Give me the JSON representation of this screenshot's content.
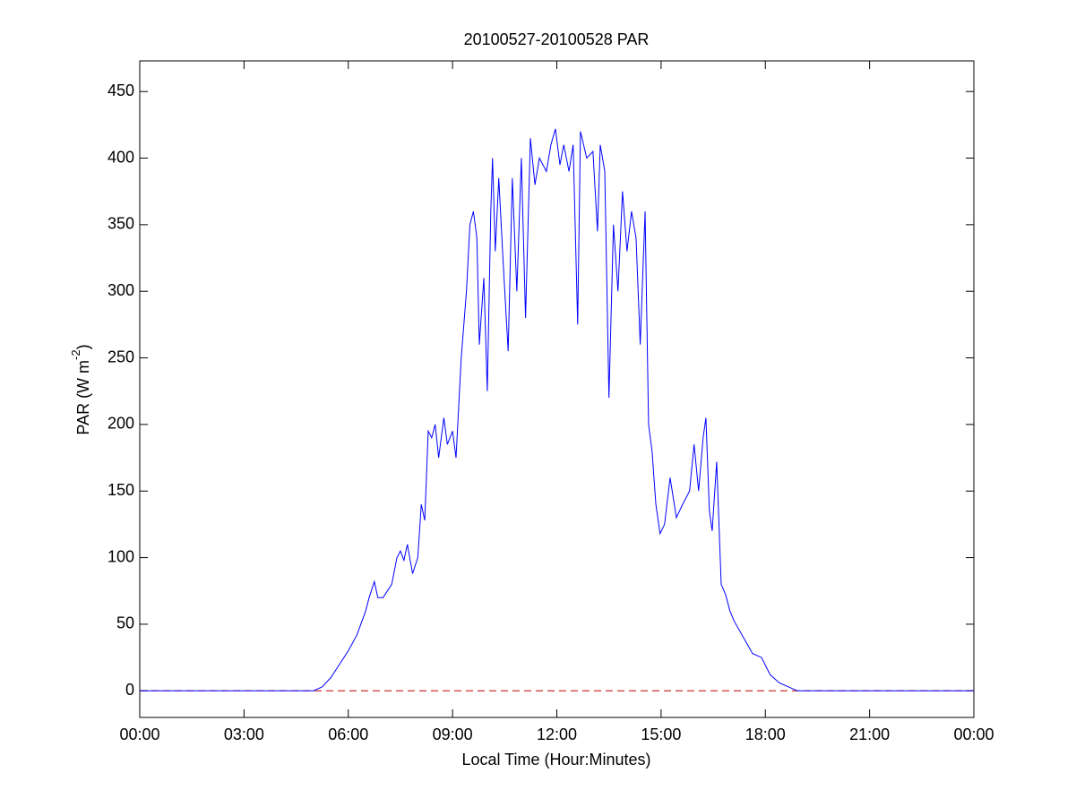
{
  "chart_data": {
    "type": "line",
    "title": "20100527-20100528 PAR",
    "xlabel": "Local Time (Hour:Minutes)",
    "ylabel": [
      "PAR (W m",
      "-2",
      ")"
    ],
    "x": [
      0,
      4.8,
      5.0,
      5.25,
      5.5,
      5.75,
      6.0,
      6.25,
      6.5,
      6.6,
      6.75,
      6.85,
      7.0,
      7.25,
      7.4,
      7.5,
      7.6,
      7.7,
      7.85,
      8.0,
      8.1,
      8.2,
      8.3,
      8.4,
      8.5,
      8.6,
      8.75,
      8.85,
      9.0,
      9.1,
      9.25,
      9.4,
      9.5,
      9.6,
      9.7,
      9.77,
      9.9,
      10.0,
      10.1,
      10.15,
      10.23,
      10.33,
      10.46,
      10.6,
      10.72,
      10.85,
      10.98,
      11.1,
      11.24,
      11.37,
      11.5,
      11.7,
      11.83,
      11.96,
      12.09,
      12.2,
      12.35,
      12.47,
      12.6,
      12.68,
      12.86,
      13.04,
      13.17,
      13.25,
      13.38,
      13.5,
      13.63,
      13.76,
      13.89,
      14.02,
      14.15,
      14.28,
      14.4,
      14.54,
      14.64,
      14.74,
      14.85,
      14.97,
      15.1,
      15.26,
      15.44,
      15.62,
      15.82,
      15.95,
      16.08,
      16.21,
      16.29,
      16.39,
      16.47,
      16.6,
      16.73,
      16.86,
      16.98,
      17.11,
      17.37,
      17.63,
      17.89,
      18.14,
      18.4,
      18.66,
      18.92,
      19.2,
      24
    ],
    "series": [
      {
        "color": "#0000ff",
        "values": [
          0,
          0,
          0,
          3,
          10,
          20,
          30,
          42,
          60,
          70,
          82,
          70,
          70,
          80,
          100,
          105,
          98,
          110,
          88,
          100,
          140,
          128,
          195,
          190,
          200,
          175,
          205,
          185,
          195,
          175,
          250,
          300,
          350,
          360,
          340,
          260,
          310,
          225,
          360,
          400,
          330,
          385,
          320,
          255,
          385,
          300,
          400,
          280,
          415,
          380,
          400,
          390,
          410,
          422,
          395,
          410,
          390,
          410,
          275,
          420,
          400,
          405,
          345,
          410,
          390,
          220,
          350,
          300,
          375,
          330,
          360,
          340,
          260,
          360,
          200,
          180,
          140,
          118,
          125,
          160,
          130,
          140,
          150,
          185,
          150,
          190,
          205,
          135,
          120,
          172,
          80,
          72,
          60,
          52,
          40,
          28,
          25,
          12,
          6,
          3,
          0,
          0,
          0
        ]
      }
    ],
    "reference_line": 0,
    "reference_color": "#c00000",
    "xlim": [
      0,
      24
    ],
    "xticks": [
      {
        "value": 0,
        "label": "00:00"
      },
      {
        "value": 3,
        "label": "03:00"
      },
      {
        "value": 6,
        "label": "06:00"
      },
      {
        "value": 9,
        "label": "09:00"
      },
      {
        "value": 12,
        "label": "12:00"
      },
      {
        "value": 15,
        "label": "15:00"
      },
      {
        "value": 18,
        "label": "18:00"
      },
      {
        "value": 21,
        "label": "21:00"
      },
      {
        "value": 24,
        "label": "00:00"
      }
    ],
    "ylim": [
      -20,
      473
    ],
    "yticks": [
      0,
      50,
      100,
      150,
      200,
      250,
      300,
      350,
      400,
      450
    ],
    "grid": false
  }
}
